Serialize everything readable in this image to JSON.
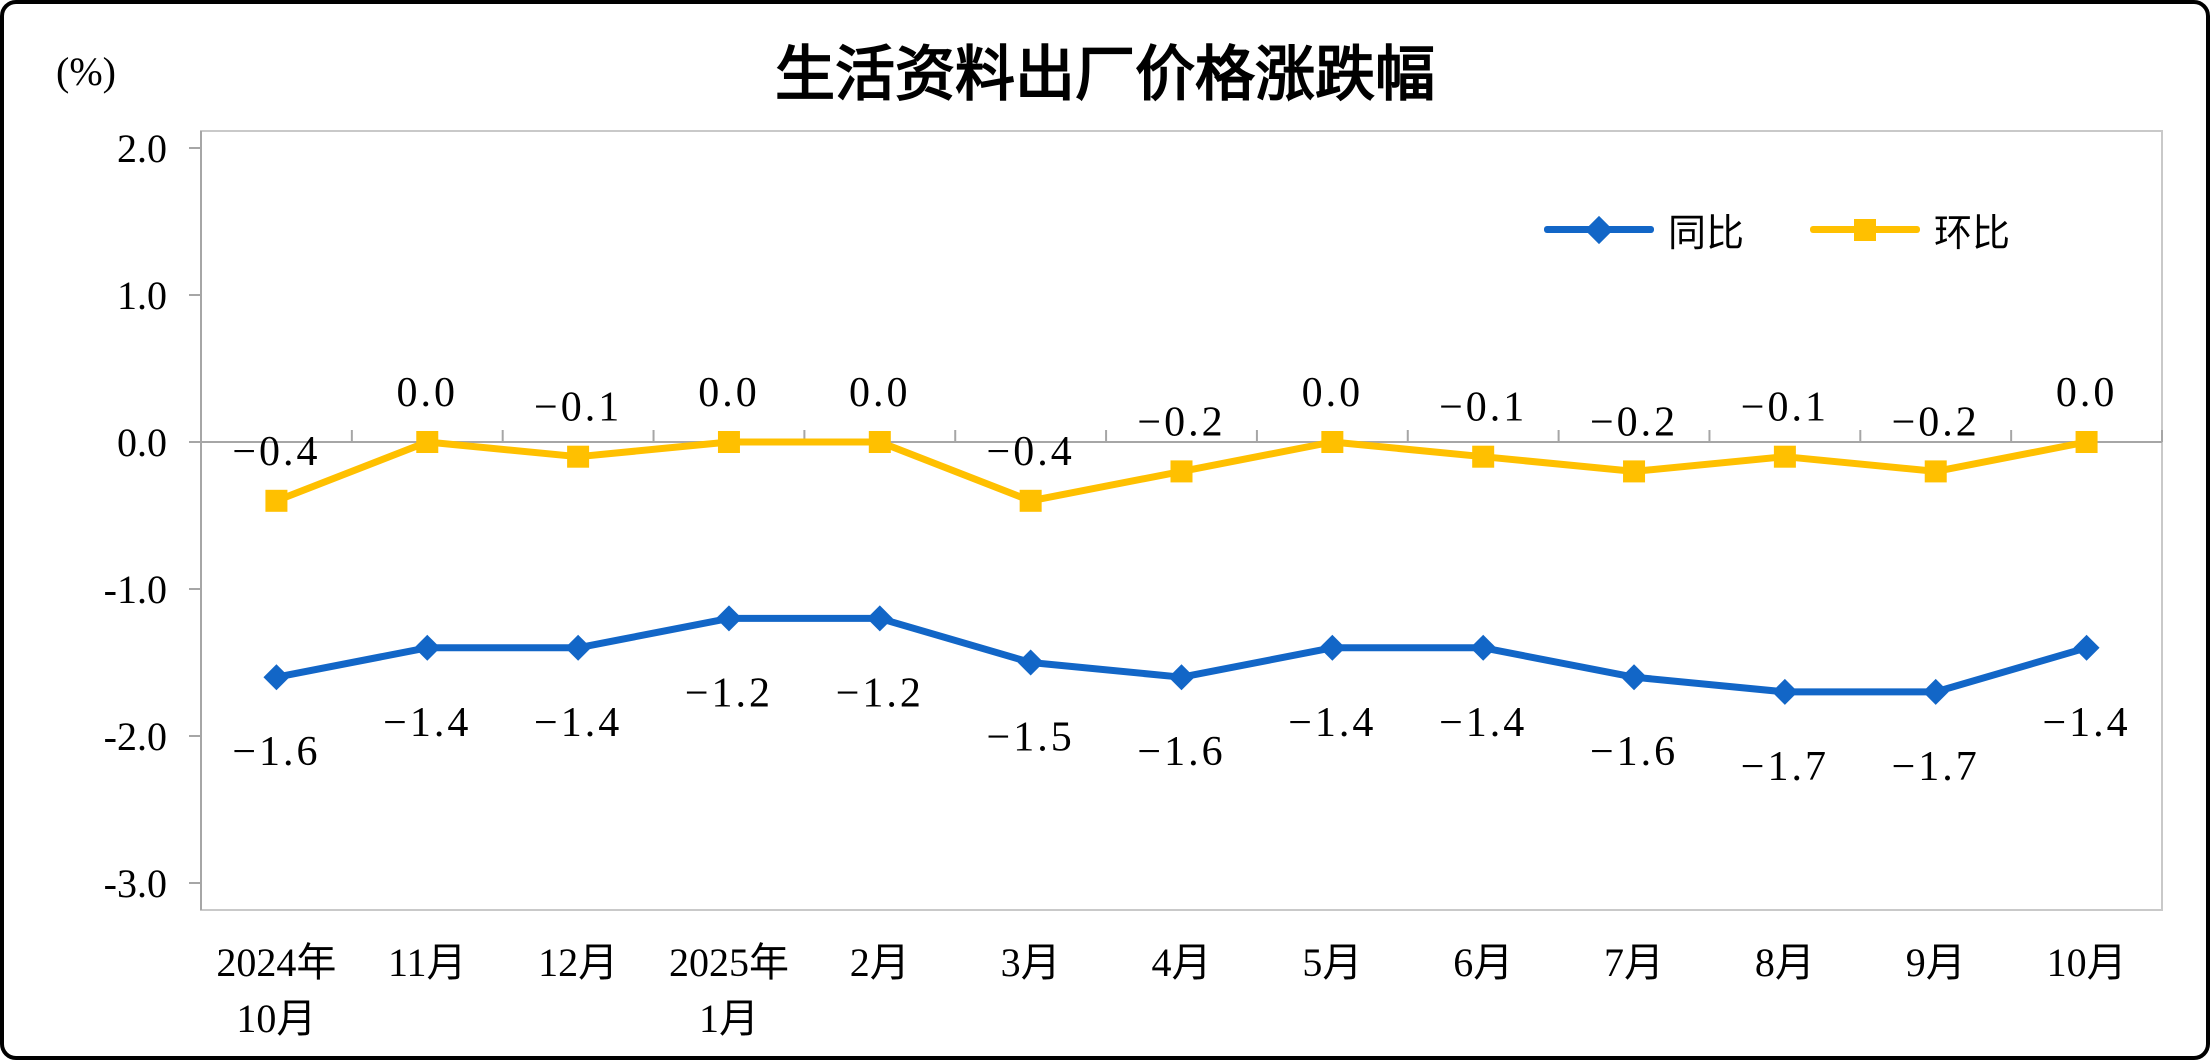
{
  "chart_data": {
    "type": "line",
    "title": "生活资料出厂价格涨跌幅",
    "unit_label": "(%)",
    "xlabel": "",
    "ylabel": "(%)",
    "grid": "off",
    "legend_position": "top-right",
    "categories": [
      "2024年10月",
      "11月",
      "12月",
      "2025年1月",
      "2月",
      "3月",
      "4月",
      "5月",
      "6月",
      "7月",
      "8月",
      "9月",
      "10月"
    ],
    "x_tick_lines": [
      [
        "2024年",
        "10月"
      ],
      [
        "11月"
      ],
      [
        "12月"
      ],
      [
        "2025年",
        "1月"
      ],
      [
        "2月"
      ],
      [
        "3月"
      ],
      [
        "4月"
      ],
      [
        "5月"
      ],
      [
        "6月"
      ],
      [
        "7月"
      ],
      [
        "8月"
      ],
      [
        "9月"
      ],
      [
        "10月"
      ]
    ],
    "series": [
      {
        "name": "同比",
        "color": "#1266C7",
        "marker": "diamond",
        "label_position": "below",
        "values": [
          -1.6,
          -1.4,
          -1.4,
          -1.2,
          -1.2,
          -1.5,
          -1.6,
          -1.4,
          -1.4,
          -1.6,
          -1.7,
          -1.7,
          -1.4
        ],
        "labels": [
          "-1.6",
          "-1.4",
          "-1.4",
          "-1.2",
          "-1.2",
          "-1.5",
          "-1.6",
          "-1.4",
          "-1.4",
          "-1.6",
          "-1.7",
          "-1.7",
          "-1.4"
        ]
      },
      {
        "name": "环比",
        "color": "#FFC000",
        "marker": "square",
        "label_position": "above",
        "values": [
          -0.4,
          0.0,
          -0.1,
          0.0,
          0.0,
          -0.4,
          -0.2,
          0.0,
          -0.1,
          -0.2,
          -0.1,
          -0.2,
          0.0
        ],
        "labels": [
          "-0.4",
          "0.0",
          "-0.1",
          "0.0",
          "0.0",
          "-0.4",
          "-0.2",
          "0.0",
          "-0.1",
          "-0.2",
          "-0.1",
          "-0.2",
          "0.0"
        ]
      }
    ],
    "y_axis": {
      "min": -3.0,
      "max": 2.0,
      "ticks": [
        {
          "v": 2.0,
          "label": "2.0"
        },
        {
          "v": 1.0,
          "label": "1.0"
        },
        {
          "v": 0.0,
          "label": "0.0"
        },
        {
          "v": -1.0,
          "label": "-1.0"
        },
        {
          "v": -2.0,
          "label": "-2.0"
        },
        {
          "v": -3.0,
          "label": "-3.0"
        }
      ]
    }
  }
}
